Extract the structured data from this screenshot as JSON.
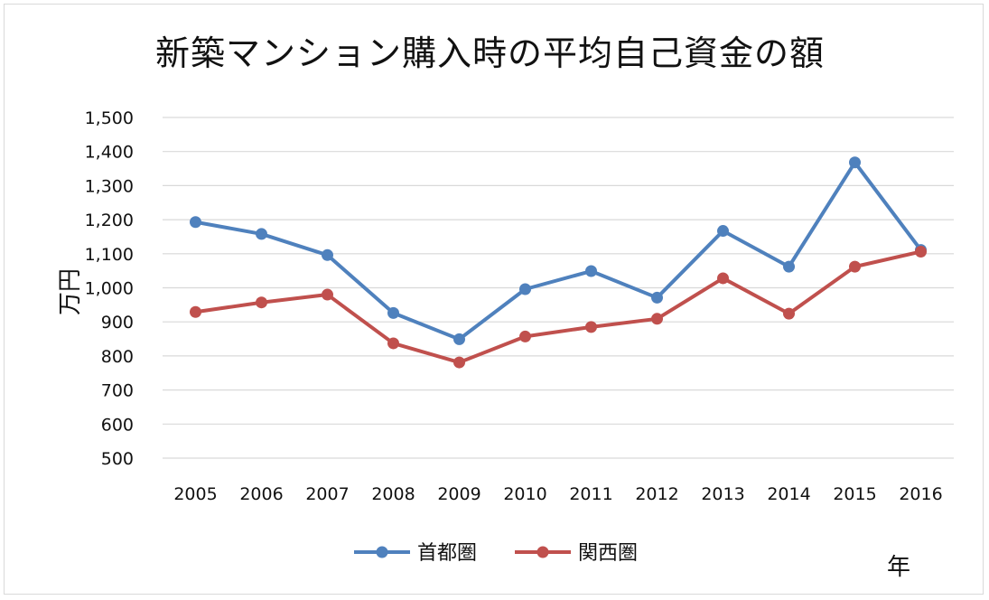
{
  "chart_data": {
    "type": "line",
    "title": "新築マンション購入時の平均自己資金の額",
    "ylabel": "万円",
    "xlabel": "年",
    "x": [
      "2005",
      "2006",
      "2007",
      "2008",
      "2009",
      "2010",
      "2011",
      "2012",
      "2013",
      "2014",
      "2015",
      "2016"
    ],
    "ylim": [
      500,
      1500
    ],
    "yticks": [
      "500",
      "600",
      "700",
      "800",
      "900",
      "1,000",
      "1,100",
      "1,200",
      "1,300",
      "1,400",
      "1,500"
    ],
    "grid": true,
    "legend_position": "bottom",
    "series": [
      {
        "name": "首都圏",
        "color": "#4f81bd",
        "values": [
          1193,
          1158,
          1096,
          926,
          849,
          996,
          1049,
          971,
          1167,
          1062,
          1368,
          1111
        ]
      },
      {
        "name": "関西圏",
        "color": "#c0504d",
        "values": [
          929,
          957,
          980,
          837,
          781,
          857,
          885,
          909,
          1028,
          924,
          1062,
          1106
        ]
      }
    ]
  }
}
